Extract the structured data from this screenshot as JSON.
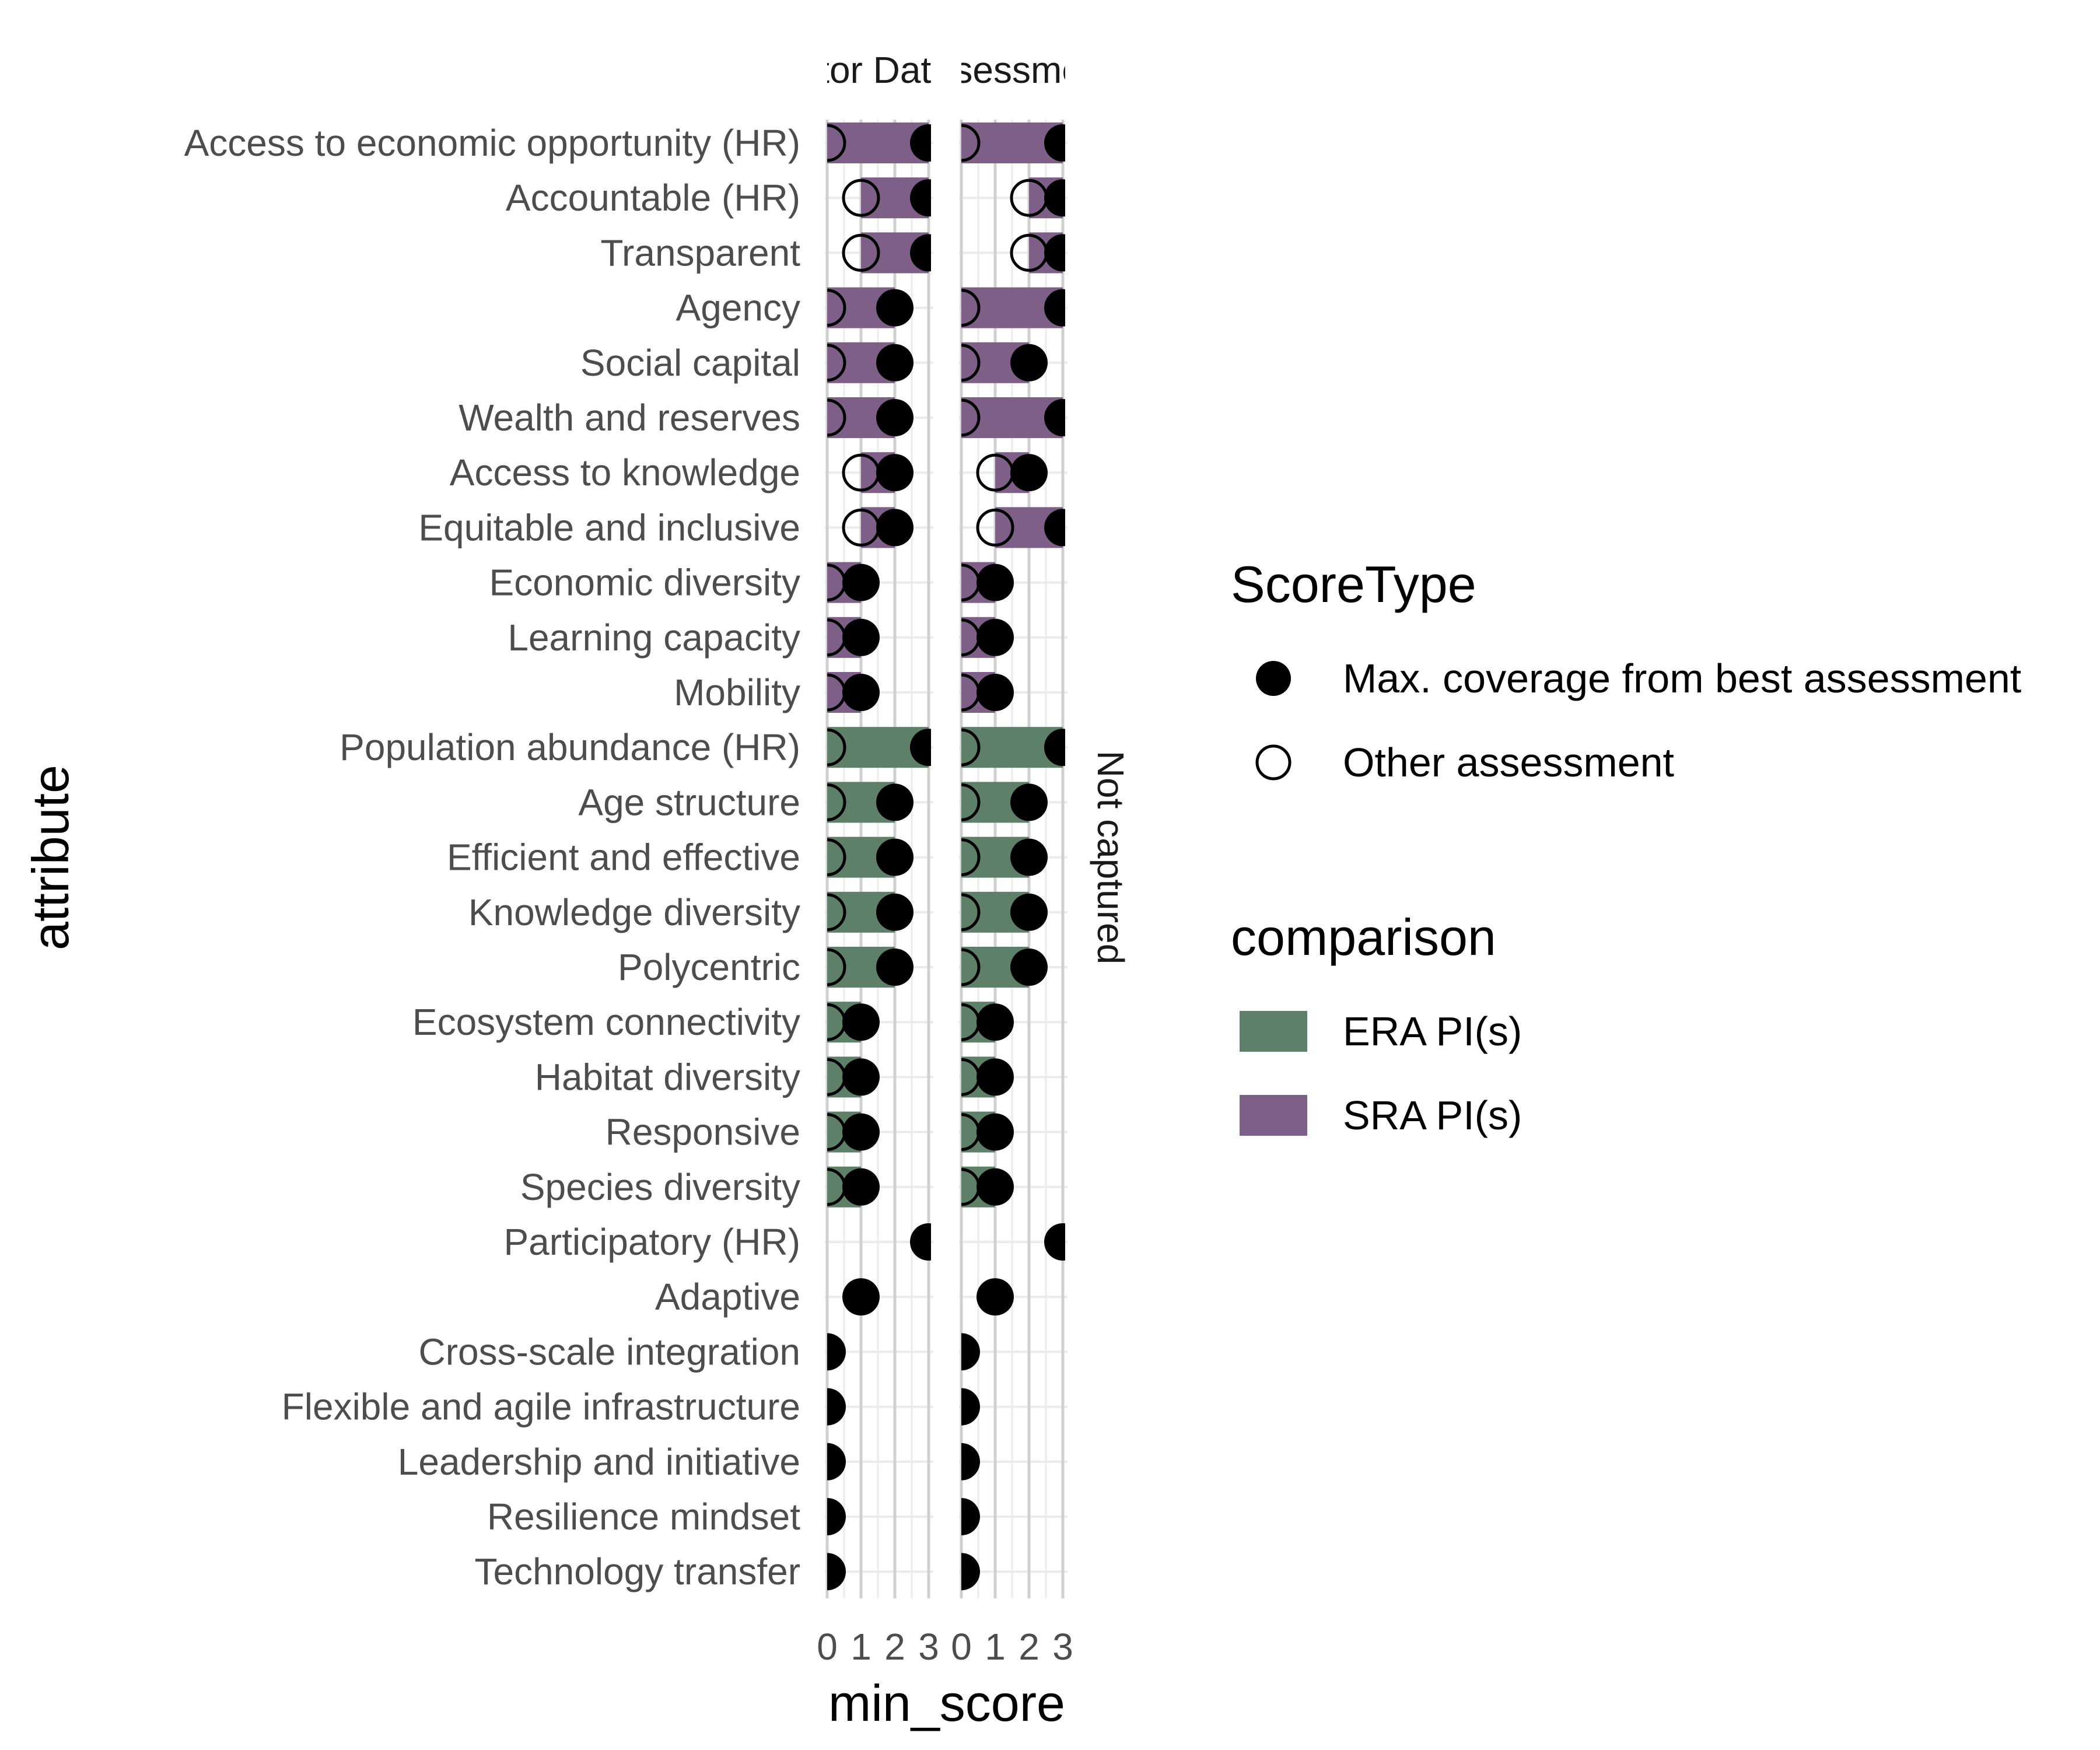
{
  "chart_data": {
    "type": "bar",
    "xlabel": "min_score",
    "ylabel": "attribute",
    "xlim": [
      0,
      3
    ],
    "x_ticks": [
      "0",
      "1",
      "2",
      "3"
    ],
    "grid": true,
    "legend_position": "right",
    "panels": [
      {
        "strip_label": "Indicator Database"
      },
      {
        "strip_label": "Assessment"
      }
    ],
    "side_strip_label": "Not captured",
    "colors": {
      "ERA PI(s)": "#5e7f68",
      "SRA PI(s)": "#7e5f87",
      "grid_major": "#d0d0d0",
      "grid_minor": "#ebebeb"
    },
    "legend": {
      "scoretype_title": "ScoreType",
      "scoretype_items": [
        "Max. coverage from best assessment",
        "Other assessment"
      ],
      "comparison_title": "comparison",
      "comparison_items": [
        "ERA PI(s)",
        "SRA PI(s)"
      ]
    },
    "categories": [
      "Access to economic opportunity (HR)",
      "Accountable (HR)",
      "Transparent",
      "Agency",
      "Social capital",
      "Wealth and reserves",
      "Access to knowledge",
      "Equitable and inclusive",
      "Economic diversity",
      "Learning capacity",
      "Mobility",
      "Population abundance (HR)",
      "Age structure",
      "Efficient and effective",
      "Knowledge diversity",
      "Polycentric",
      "Ecosystem connectivity",
      "Habitat diversity",
      "Responsive",
      "Species diversity",
      "Participatory (HR)",
      "Adaptive",
      "Cross-scale integration",
      "Flexible and agile infrastructure",
      "Leadership and initiative",
      "Resilience mindset",
      "Technology transfer"
    ],
    "series": [
      {
        "panel": "Indicator Database",
        "comparison": [
          "SRA PI(s)",
          "SRA PI(s)",
          "SRA PI(s)",
          "SRA PI(s)",
          "SRA PI(s)",
          "SRA PI(s)",
          "SRA PI(s)",
          "SRA PI(s)",
          "SRA PI(s)",
          "SRA PI(s)",
          "SRA PI(s)",
          "ERA PI(s)",
          "ERA PI(s)",
          "ERA PI(s)",
          "ERA PI(s)",
          "ERA PI(s)",
          "ERA PI(s)",
          "ERA PI(s)",
          "ERA PI(s)",
          "ERA PI(s)",
          "",
          "",
          "",
          "",
          "",
          "",
          ""
        ],
        "min_score": [
          0,
          1,
          1,
          0,
          0,
          0,
          1,
          1,
          0,
          0,
          0,
          0,
          0,
          0,
          0,
          0,
          0,
          0,
          0,
          0,
          3,
          1,
          0,
          0,
          0,
          0,
          0
        ],
        "max_score": [
          3,
          3,
          3,
          2,
          2,
          2,
          2,
          2,
          1,
          1,
          1,
          3,
          2,
          2,
          2,
          2,
          1,
          1,
          1,
          1,
          3,
          1,
          0,
          0,
          0,
          0,
          0
        ]
      },
      {
        "panel": "Assessment",
        "comparison": [
          "SRA PI(s)",
          "SRA PI(s)",
          "SRA PI(s)",
          "SRA PI(s)",
          "SRA PI(s)",
          "SRA PI(s)",
          "SRA PI(s)",
          "SRA PI(s)",
          "SRA PI(s)",
          "SRA PI(s)",
          "SRA PI(s)",
          "ERA PI(s)",
          "ERA PI(s)",
          "ERA PI(s)",
          "ERA PI(s)",
          "ERA PI(s)",
          "ERA PI(s)",
          "ERA PI(s)",
          "ERA PI(s)",
          "ERA PI(s)",
          "",
          "",
          "",
          "",
          "",
          "",
          ""
        ],
        "min_score": [
          0,
          2,
          2,
          0,
          0,
          0,
          1,
          1,
          0,
          0,
          0,
          0,
          0,
          0,
          0,
          0,
          0,
          0,
          0,
          0,
          3,
          1,
          0,
          0,
          0,
          0,
          0
        ],
        "max_score": [
          3,
          3,
          3,
          3,
          2,
          3,
          2,
          3,
          1,
          1,
          1,
          3,
          2,
          2,
          2,
          2,
          1,
          1,
          1,
          1,
          3,
          1,
          0,
          0,
          0,
          0,
          0
        ]
      }
    ]
  }
}
